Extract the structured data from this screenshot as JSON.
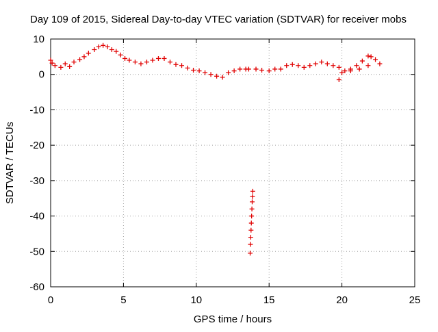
{
  "chart_data": {
    "type": "scatter",
    "title": "Day 109 of 2015, Sidereal Day-to-day VTEC variation (SDTVAR) for receiver mobs",
    "xlabel": "GPS time / hours",
    "ylabel": "SDTVAR / TECUs",
    "xlim": [
      0,
      25
    ],
    "ylim": [
      -60,
      10
    ],
    "x_ticks": [
      0,
      5,
      10,
      15,
      20,
      25
    ],
    "y_ticks": [
      10,
      0,
      -10,
      -20,
      -30,
      -40,
      -50,
      -60
    ],
    "grid": true,
    "legend": "none",
    "marker": "+",
    "series": [
      {
        "name": "SDTVAR",
        "color": "#e00000",
        "x": [
          0.0,
          0.1,
          0.3,
          0.7,
          1.0,
          1.3,
          1.6,
          2.0,
          2.3,
          2.6,
          3.0,
          3.3,
          3.6,
          3.9,
          4.2,
          4.5,
          4.8,
          5.1,
          5.4,
          5.8,
          6.2,
          6.6,
          7.0,
          7.4,
          7.8,
          8.2,
          8.6,
          9.0,
          9.4,
          9.8,
          10.2,
          10.6,
          11.0,
          11.4,
          11.8,
          12.2,
          12.6,
          13.0,
          13.4,
          13.6,
          14.1,
          14.5,
          15.0,
          15.4,
          15.8,
          16.2,
          16.6,
          17.0,
          17.4,
          17.8,
          18.2,
          18.6,
          19.0,
          19.4,
          19.8,
          20.2,
          20.6,
          21.0,
          21.4,
          21.8,
          22.0,
          22.3,
          22.6,
          21.8,
          21.2,
          20.6,
          20.0,
          19.8,
          13.7,
          13.72,
          13.74,
          13.76,
          13.78,
          13.8,
          13.82,
          13.84,
          13.86,
          13.88
        ],
        "y": [
          4.0,
          3.2,
          2.5,
          2.0,
          3.0,
          2.2,
          3.5,
          4.2,
          5.0,
          6.0,
          7.0,
          7.8,
          8.2,
          7.8,
          7.0,
          6.5,
          5.5,
          4.5,
          4.0,
          3.5,
          3.0,
          3.5,
          4.0,
          4.5,
          4.5,
          3.5,
          2.8,
          2.5,
          1.8,
          1.2,
          1.0,
          0.5,
          0.0,
          -0.5,
          -0.8,
          0.5,
          1.0,
          1.5,
          1.5,
          1.5,
          1.5,
          1.2,
          1.0,
          1.5,
          1.5,
          2.5,
          2.8,
          2.5,
          2.0,
          2.5,
          3.0,
          3.5,
          3.0,
          2.5,
          2.0,
          1.0,
          1.5,
          2.5,
          3.8,
          5.2,
          5.0,
          4.2,
          3.0,
          2.5,
          1.5,
          1.0,
          0.5,
          -1.5,
          -50.5,
          -48.0,
          -46.0,
          -44.0,
          -42.0,
          -40.0,
          -38.0,
          -36.0,
          -34.5,
          -33.0
        ]
      }
    ]
  }
}
